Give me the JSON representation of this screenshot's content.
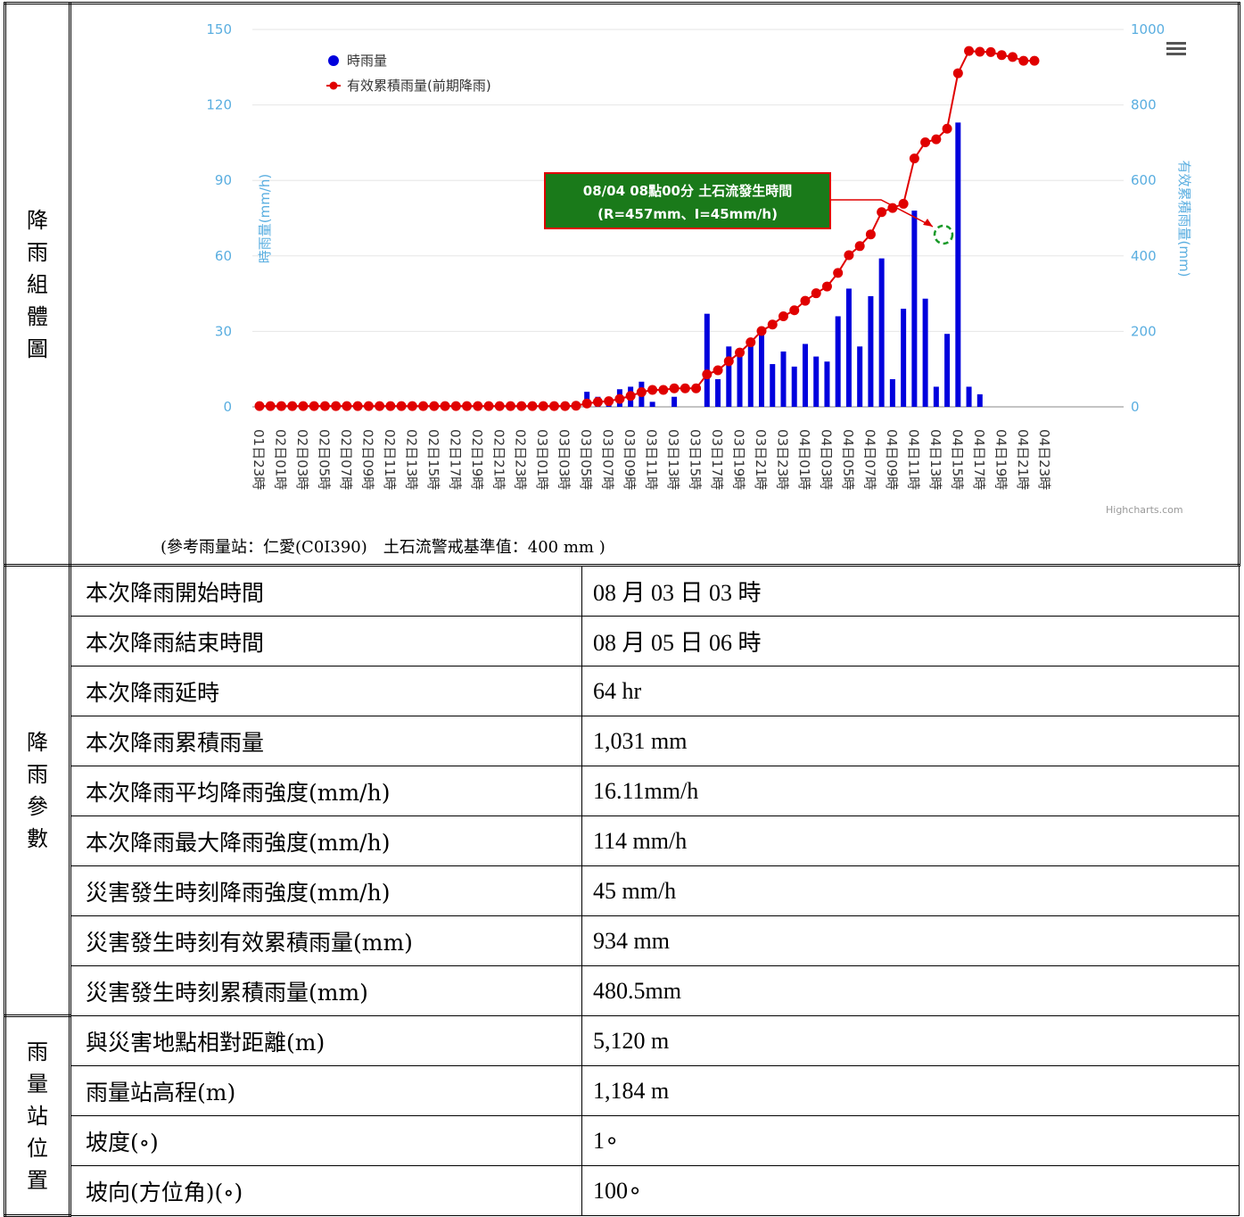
{
  "sections": {
    "chart_label": "降雨組體圖",
    "params_label": "降雨參數",
    "station_label": "雨量站位置"
  },
  "chart_caption": "(參考雨量站：仁愛(C0I390)　土石流警戒基準值：400 mm )",
  "annotation": {
    "line1": "08/04 08點00分 土石流發生時間",
    "line2": "(R=457mm、I=45mm/h)"
  },
  "credit": "Highcharts.com",
  "chart_data": {
    "type": "bar",
    "title": "",
    "legend_position": "top-left",
    "colors": {
      "bar": "#0000dd",
      "line": "#e00000",
      "axis_label": "#5aaee0"
    },
    "x_labels_shown": [
      "01日23時",
      "02日01時",
      "02日03時",
      "02日05時",
      "02日07時",
      "02日09時",
      "02日11時",
      "02日13時",
      "02日15時",
      "02日17時",
      "02日19時",
      "02日21時",
      "02日23時",
      "03日01時",
      "03日03時",
      "03日05時",
      "03日07時",
      "03日09時",
      "03日11時",
      "03日13時",
      "03日15時",
      "03日17時",
      "03日19時",
      "03日21時",
      "03日23時",
      "04日01時",
      "04日03時",
      "04日05時",
      "04日07時",
      "04日09時",
      "04日11時",
      "04日13時",
      "04日15時",
      "04日17時",
      "04日19時",
      "04日21時",
      "04日23時"
    ],
    "y_left": {
      "label": "時雨量(mm/h)",
      "ticks": [
        "0",
        "30",
        "60",
        "90",
        "120",
        "150"
      ],
      "range": [
        0,
        150
      ]
    },
    "y_right": {
      "label": "有效累積雨量(mm)",
      "ticks": [
        "0",
        "200",
        "400",
        "600",
        "800",
        "1000"
      ],
      "range": [
        0,
        1000
      ]
    },
    "series": [
      {
        "name": "時雨量",
        "type": "bar",
        "values": [
          0,
          0,
          0,
          0,
          0,
          0,
          0,
          0,
          0,
          0,
          0,
          0,
          0,
          0,
          0,
          0,
          0,
          0,
          0,
          0,
          0,
          0,
          0,
          0,
          0,
          0,
          0,
          0,
          0,
          1,
          6,
          4,
          2,
          7,
          8,
          10,
          2,
          0,
          4,
          0,
          0,
          37,
          11,
          24,
          23,
          27,
          30,
          17,
          22,
          16,
          25,
          20,
          18,
          36,
          47,
          24,
          44,
          59,
          11,
          39,
          78,
          43,
          8,
          29,
          113,
          8,
          5,
          0,
          0,
          0,
          0,
          0
        ]
      },
      {
        "name": "有效累積雨量(前期降雨)",
        "type": "line",
        "values": [
          2,
          2,
          2,
          2,
          2,
          2,
          2,
          2,
          2,
          2,
          2,
          2,
          2,
          2,
          2,
          2,
          2,
          2,
          2,
          2,
          2,
          2,
          2,
          2,
          2,
          2,
          2,
          2,
          2,
          3,
          9,
          13,
          15,
          21,
          29,
          39,
          45,
          45,
          49,
          49,
          49,
          86,
          97,
          121,
          144,
          171,
          201,
          218,
          240,
          256,
          281,
          301,
          319,
          355,
          402,
          426,
          457,
          516,
          527,
          538,
          658,
          701,
          709,
          737,
          884,
          943,
          941,
          940,
          932,
          927,
          917,
          917
        ]
      }
    ]
  },
  "params": [
    {
      "label": "本次降雨開始時間",
      "value": "08 月 03 日 03 時"
    },
    {
      "label": "本次降雨結束時間",
      "value": "08 月 05 日 06 時"
    },
    {
      "label": "本次降雨延時",
      "value": "64 hr"
    },
    {
      "label": "本次降雨累積雨量",
      "value": "1,031 mm"
    },
    {
      "label": "本次降雨平均降雨強度(mm/h)",
      "value": "16.11mm/h"
    },
    {
      "label": "本次降雨最大降雨強度(mm/h)",
      "value": "114 mm/h"
    },
    {
      "label": "災害發生時刻降雨強度(mm/h)",
      "value": "45 mm/h"
    },
    {
      "label": "災害發生時刻有效累積雨量(mm)",
      "value": "934 mm"
    },
    {
      "label": "災害發生時刻累積雨量(mm)",
      "value": "480.5mm"
    }
  ],
  "station": [
    {
      "label": "與災害地點相對距離(m)",
      "value": "5,120 m"
    },
    {
      "label": "雨量站高程(m)",
      "value": "1,184 m"
    },
    {
      "label": "坡度(∘)",
      "value": "1∘"
    },
    {
      "label": "坡向(方位角)(∘)",
      "value": "100∘"
    }
  ]
}
